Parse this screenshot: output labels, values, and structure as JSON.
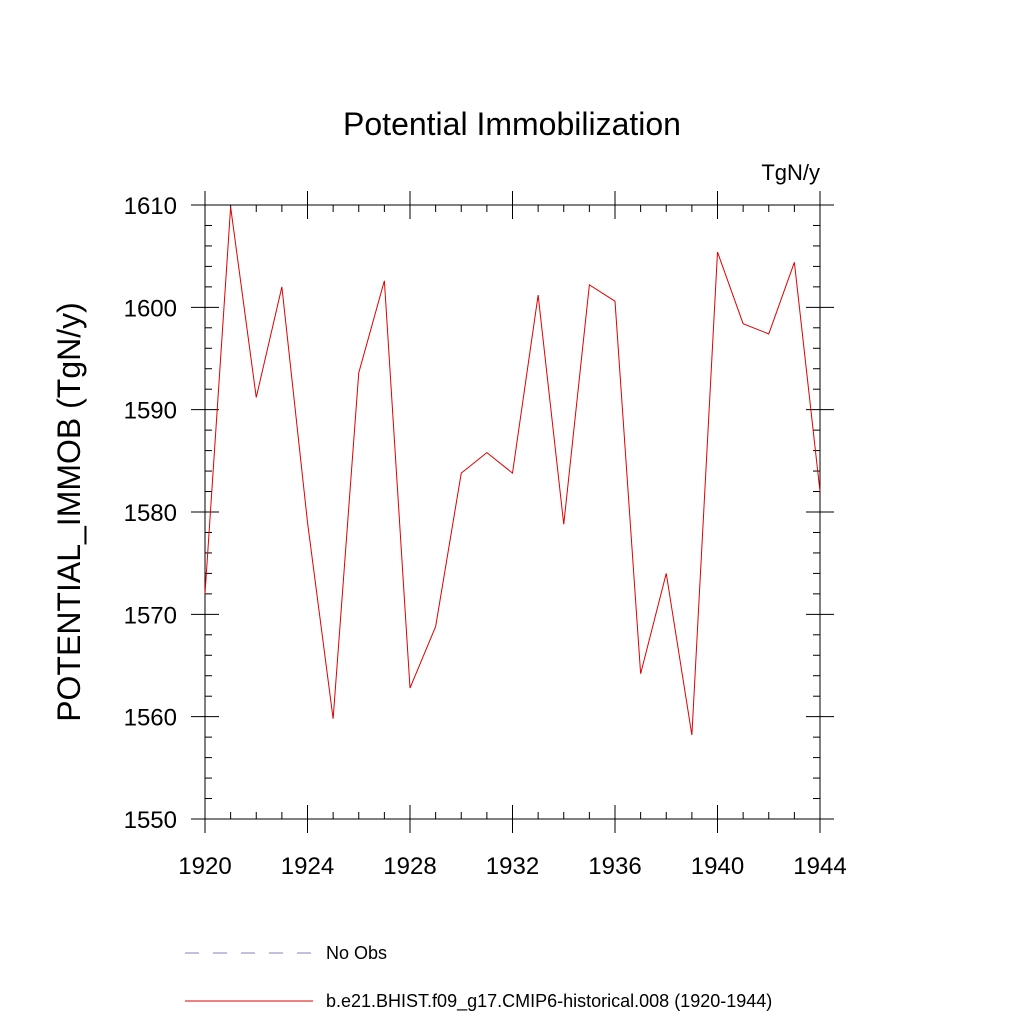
{
  "chart_data": {
    "type": "line",
    "title": "Potential Immobilization",
    "units_label": "TgN/y",
    "xlabel": "",
    "ylabel": "POTENTIAL_IMMOB  (TgN/y)",
    "xlim": [
      1920,
      1944
    ],
    "ylim": [
      1550,
      1610
    ],
    "x_ticks": [
      1920,
      1924,
      1928,
      1932,
      1936,
      1940,
      1944
    ],
    "y_ticks": [
      1550,
      1560,
      1570,
      1580,
      1590,
      1600,
      1610
    ],
    "x_minor_step": 1,
    "y_minor_step": 2,
    "series": [
      {
        "name": "b.e21.BHIST.f09_g17.CMIP6-historical.008 (1920-1944)",
        "color": "#e00000",
        "x": [
          1920,
          1921,
          1922,
          1923,
          1924,
          1925,
          1926,
          1927,
          1928,
          1929,
          1930,
          1931,
          1932,
          1933,
          1934,
          1935,
          1936,
          1937,
          1938,
          1939,
          1940,
          1941,
          1942,
          1943,
          1944
        ],
        "values": [
          1572,
          1609.8,
          1591.2,
          1602,
          1579,
          1559.8,
          1593.6,
          1602.6,
          1562.8,
          1568.8,
          1583.8,
          1585.8,
          1583.8,
          1601.2,
          1578.8,
          1602.2,
          1600.6,
          1564.2,
          1574,
          1558.2,
          1605.4,
          1598.4,
          1597.4,
          1604.4,
          1582
        ]
      }
    ],
    "legend": [
      {
        "label": "No Obs",
        "color": "#8080c0",
        "style": "dashed"
      },
      {
        "label": "b.e21.BHIST.f09_g17.CMIP6-historical.008 (1920-1944)",
        "color": "#e00000",
        "style": "solid"
      }
    ]
  }
}
